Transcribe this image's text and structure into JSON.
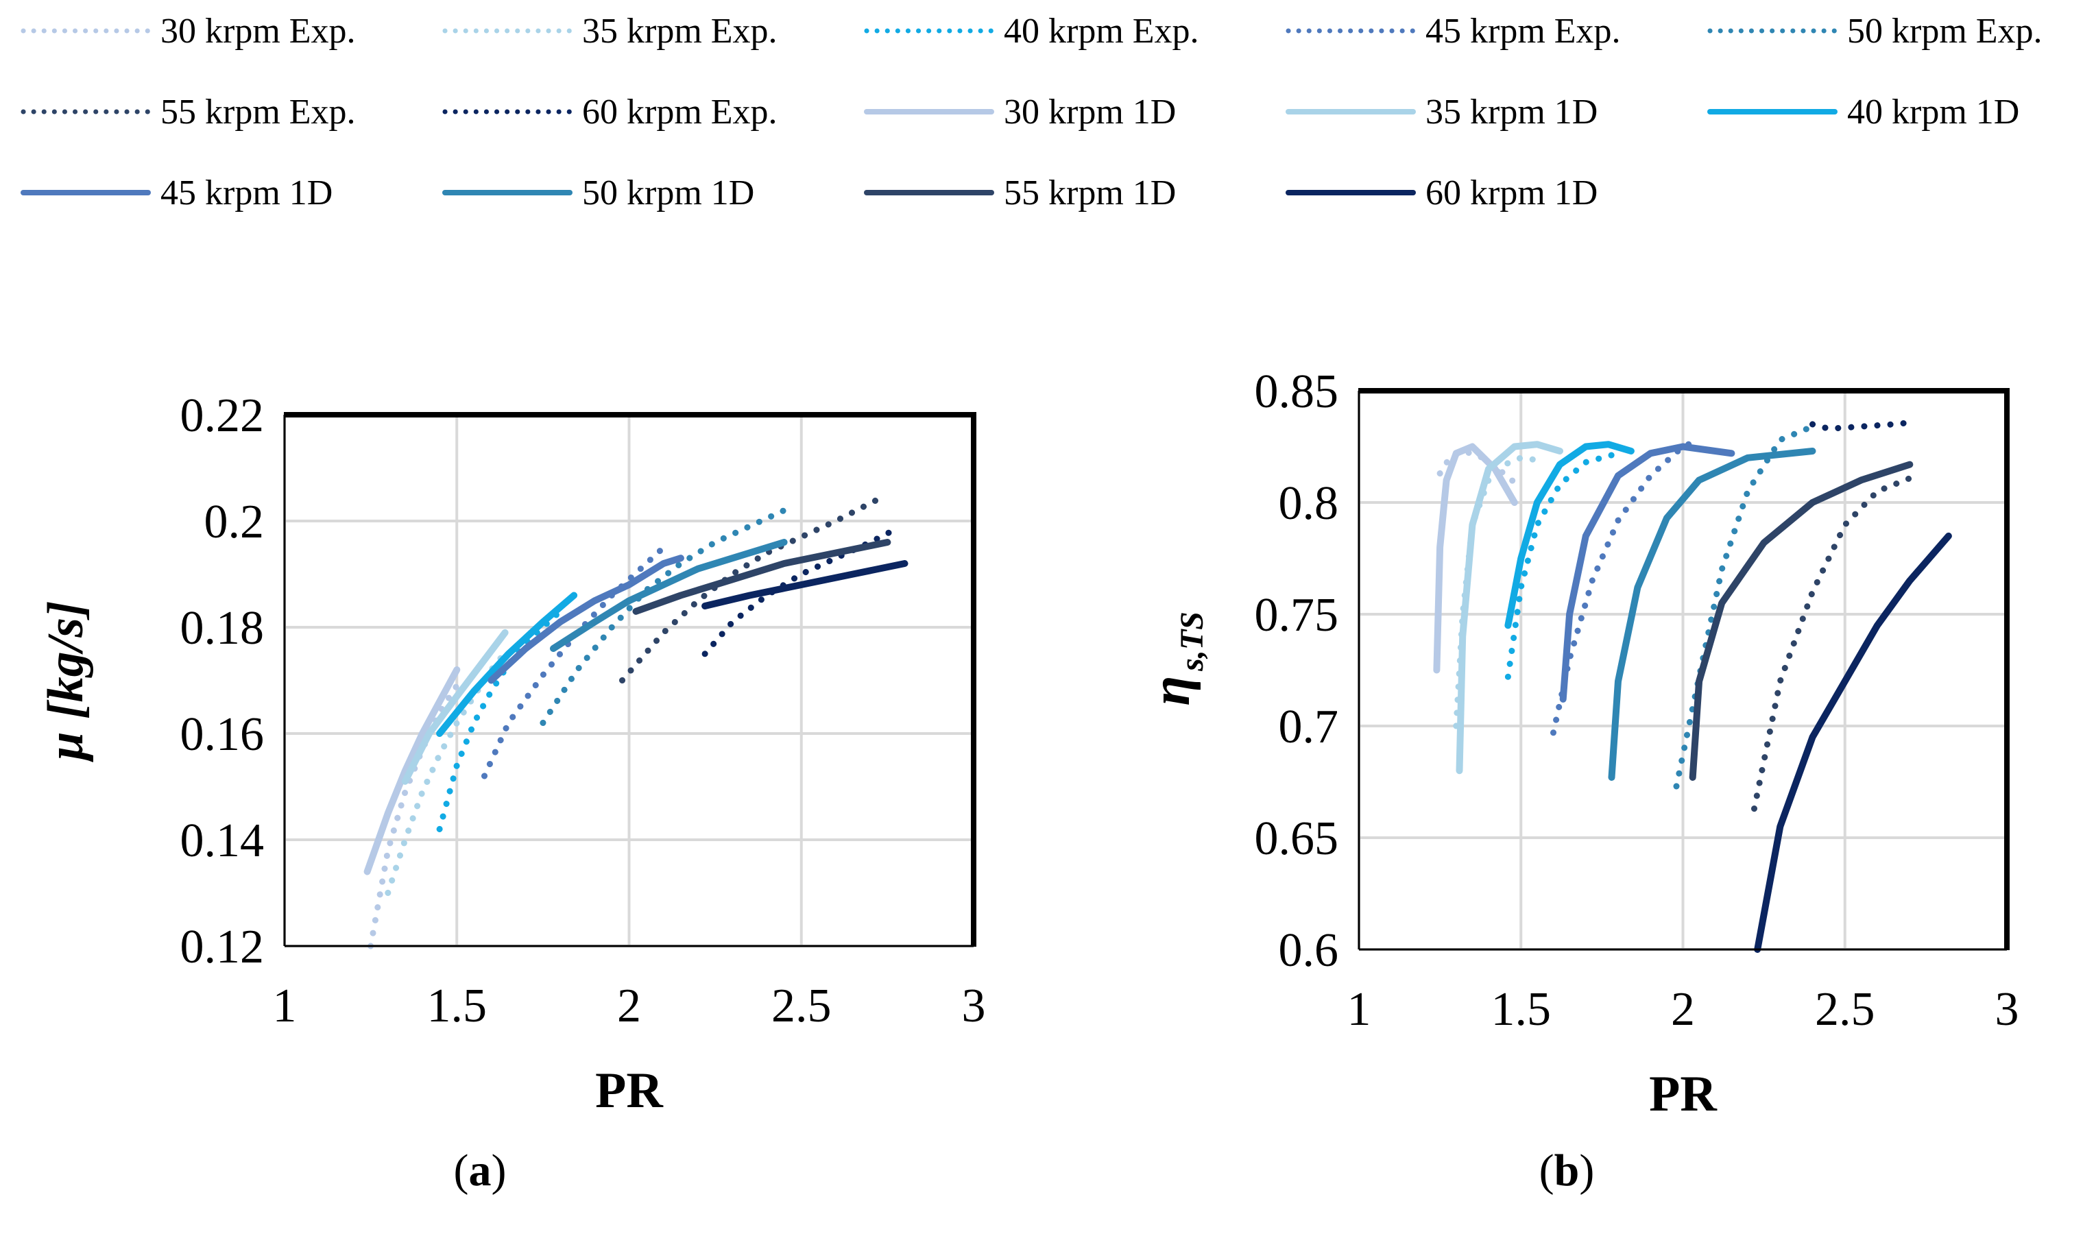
{
  "legend": {
    "items": [
      {
        "label": "30 krpm Exp.",
        "color": "#b6c9e6",
        "style": "dotted"
      },
      {
        "label": "35 krpm Exp.",
        "color": "#a9d3e8",
        "style": "dotted"
      },
      {
        "label": "40 krpm Exp.",
        "color": "#11aae4",
        "style": "dotted"
      },
      {
        "label": "45 krpm Exp.",
        "color": "#4f79bd",
        "style": "dotted"
      },
      {
        "label": "50 krpm Exp.",
        "color": "#2f86b3",
        "style": "dotted"
      },
      {
        "label": "55 krpm Exp.",
        "color": "#2e4467",
        "style": "dotted"
      },
      {
        "label": "60 krpm Exp.",
        "color": "#0b2560",
        "style": "dotted"
      },
      {
        "label": "30 krpm 1D",
        "color": "#b6c9e6",
        "style": "solid"
      },
      {
        "label": "35 krpm 1D",
        "color": "#a9d3e8",
        "style": "solid"
      },
      {
        "label": "40 krpm 1D",
        "color": "#11aae4",
        "style": "solid"
      },
      {
        "label": "45 krpm 1D",
        "color": "#4f79bd",
        "style": "solid"
      },
      {
        "label": "50 krpm 1D",
        "color": "#2f86b3",
        "style": "solid"
      },
      {
        "label": "55 krpm 1D",
        "color": "#2e4467",
        "style": "solid"
      },
      {
        "label": "60 krpm 1D",
        "color": "#0b2560",
        "style": "solid"
      }
    ]
  },
  "captions": {
    "a": {
      "open": "(",
      "letter": "a",
      "close": ")"
    },
    "b": {
      "open": "(",
      "letter": "b",
      "close": ")"
    }
  },
  "chart_data": [
    {
      "id": "a",
      "type": "line",
      "xlabel": "PR",
      "ylabel": "μ [kg/s]",
      "xlim": [
        1,
        3
      ],
      "ylim": [
        0.12,
        0.22
      ],
      "xticks": [
        "1",
        "1.5",
        "2",
        "2.5",
        "3"
      ],
      "yticks": [
        "0.12",
        "0.14",
        "0.16",
        "0.18",
        "0.2",
        "0.22"
      ],
      "grid": true,
      "series": [
        {
          "name": "30 krpm Exp.",
          "x": [
            1.25,
            1.3,
            1.35,
            1.4,
            1.45,
            1.5
          ],
          "y": [
            0.12,
            0.138,
            0.149,
            0.157,
            0.164,
            0.169
          ]
        },
        {
          "name": "35 krpm Exp.",
          "x": [
            1.3,
            1.35,
            1.4,
            1.45,
            1.5,
            1.55,
            1.6,
            1.65
          ],
          "y": [
            0.13,
            0.14,
            0.149,
            0.156,
            0.162,
            0.167,
            0.172,
            0.176
          ]
        },
        {
          "name": "40 krpm Exp.",
          "x": [
            1.45,
            1.5,
            1.55,
            1.6,
            1.65,
            1.7,
            1.75,
            1.8
          ],
          "y": [
            0.142,
            0.154,
            0.162,
            0.168,
            0.173,
            0.177,
            0.18,
            0.183
          ]
        },
        {
          "name": "45 krpm Exp.",
          "x": [
            1.58,
            1.65,
            1.75,
            1.85,
            1.95,
            2.05,
            2.1
          ],
          "y": [
            0.152,
            0.162,
            0.171,
            0.179,
            0.186,
            0.192,
            0.195
          ]
        },
        {
          "name": "50 krpm Exp.",
          "x": [
            1.75,
            1.85,
            1.95,
            2.05,
            2.15,
            2.25,
            2.35,
            2.45
          ],
          "y": [
            0.162,
            0.172,
            0.18,
            0.187,
            0.192,
            0.196,
            0.199,
            0.202
          ]
        },
        {
          "name": "55 krpm Exp.",
          "x": [
            1.98,
            2.1,
            2.2,
            2.3,
            2.4,
            2.5,
            2.6,
            2.72
          ],
          "y": [
            0.17,
            0.179,
            0.185,
            0.19,
            0.194,
            0.197,
            0.2,
            0.204
          ]
        },
        {
          "name": "60 krpm Exp.",
          "x": [
            2.22,
            2.3,
            2.4,
            2.5,
            2.6,
            2.7,
            2.76
          ],
          "y": [
            0.175,
            0.181,
            0.186,
            0.19,
            0.193,
            0.196,
            0.198
          ]
        },
        {
          "name": "30 krpm 1D",
          "x": [
            1.24,
            1.3,
            1.35,
            1.4,
            1.45,
            1.5
          ],
          "y": [
            0.134,
            0.145,
            0.153,
            0.16,
            0.166,
            0.172
          ]
        },
        {
          "name": "35 krpm 1D",
          "x": [
            1.35,
            1.42,
            1.5,
            1.57,
            1.64
          ],
          "y": [
            0.151,
            0.16,
            0.167,
            0.173,
            0.179
          ]
        },
        {
          "name": "40 krpm 1D",
          "x": [
            1.45,
            1.55,
            1.65,
            1.75,
            1.84
          ],
          "y": [
            0.16,
            0.168,
            0.175,
            0.181,
            0.186
          ]
        },
        {
          "name": "45 krpm 1D",
          "x": [
            1.6,
            1.7,
            1.8,
            1.9,
            2.0,
            2.1,
            2.15
          ],
          "y": [
            0.17,
            0.176,
            0.181,
            0.185,
            0.188,
            0.192,
            0.193
          ]
        },
        {
          "name": "50 krpm 1D",
          "x": [
            1.78,
            1.9,
            2.0,
            2.1,
            2.2,
            2.3,
            2.45
          ],
          "y": [
            0.176,
            0.181,
            0.185,
            0.188,
            0.191,
            0.193,
            0.196
          ]
        },
        {
          "name": "55 krpm 1D",
          "x": [
            2.02,
            2.15,
            2.3,
            2.45,
            2.6,
            2.75
          ],
          "y": [
            0.183,
            0.186,
            0.189,
            0.192,
            0.194,
            0.196
          ]
        },
        {
          "name": "60 krpm 1D",
          "x": [
            2.22,
            2.35,
            2.5,
            2.65,
            2.8
          ],
          "y": [
            0.184,
            0.186,
            0.188,
            0.19,
            0.192
          ]
        }
      ]
    },
    {
      "id": "b",
      "type": "line",
      "xlabel": "PR",
      "ylabel": "η",
      "ylabel_sub": "s,TS",
      "xlim": [
        1,
        3
      ],
      "ylim": [
        0.6,
        0.85
      ],
      "xticks": [
        "1",
        "1.5",
        "2",
        "2.5",
        "3"
      ],
      "yticks": [
        "0.6",
        "0.65",
        "0.7",
        "0.75",
        "0.8",
        "0.85"
      ],
      "grid": true,
      "series": [
        {
          "name": "30 krpm Exp.",
          "x": [
            1.25,
            1.28,
            1.32,
            1.37,
            1.43,
            1.48
          ],
          "y": [
            0.813,
            0.82,
            0.823,
            0.821,
            0.815,
            0.809
          ]
        },
        {
          "name": "35 krpm Exp.",
          "x": [
            1.3,
            1.32,
            1.35,
            1.4,
            1.45,
            1.5,
            1.55
          ],
          "y": [
            0.7,
            0.75,
            0.79,
            0.81,
            0.817,
            0.82,
            0.819
          ]
        },
        {
          "name": "40 krpm Exp.",
          "x": [
            1.46,
            1.5,
            1.55,
            1.62,
            1.7,
            1.8
          ],
          "y": [
            0.722,
            0.762,
            0.79,
            0.808,
            0.818,
            0.822
          ]
        },
        {
          "name": "45 krpm Exp.",
          "x": [
            1.6,
            1.65,
            1.72,
            1.8,
            1.9,
            2.0,
            2.05
          ],
          "y": [
            0.697,
            0.73,
            0.765,
            0.792,
            0.812,
            0.825,
            0.828
          ]
        },
        {
          "name": "50 krpm Exp.",
          "x": [
            1.98,
            2.05,
            2.12,
            2.2,
            2.3,
            2.4
          ],
          "y": [
            0.673,
            0.722,
            0.77,
            0.805,
            0.828,
            0.834
          ]
        },
        {
          "name": "55 krpm Exp.",
          "x": [
            2.22,
            2.3,
            2.4,
            2.5,
            2.6,
            2.72
          ],
          "y": [
            0.663,
            0.72,
            0.76,
            0.79,
            0.805,
            0.812
          ]
        },
        {
          "name": "60 krpm Exp.",
          "x": [
            2.4,
            2.45,
            2.55,
            2.65,
            2.72
          ],
          "y": [
            0.835,
            0.833,
            0.834,
            0.835,
            0.836
          ]
        },
        {
          "name": "30 krpm 1D",
          "x": [
            1.24,
            1.25,
            1.27,
            1.3,
            1.35,
            1.42,
            1.48
          ],
          "y": [
            0.725,
            0.78,
            0.81,
            0.822,
            0.825,
            0.815,
            0.8
          ]
        },
        {
          "name": "35 krpm 1D",
          "x": [
            1.31,
            1.32,
            1.35,
            1.4,
            1.48,
            1.55,
            1.62
          ],
          "y": [
            0.68,
            0.74,
            0.79,
            0.815,
            0.825,
            0.826,
            0.823
          ]
        },
        {
          "name": "40 krpm 1D",
          "x": [
            1.46,
            1.5,
            1.55,
            1.62,
            1.7,
            1.77,
            1.84
          ],
          "y": [
            0.745,
            0.775,
            0.8,
            0.817,
            0.825,
            0.826,
            0.823
          ]
        },
        {
          "name": "45 krpm 1D",
          "x": [
            1.63,
            1.65,
            1.7,
            1.8,
            1.9,
            2.0,
            2.15
          ],
          "y": [
            0.712,
            0.75,
            0.785,
            0.812,
            0.822,
            0.825,
            0.822
          ]
        },
        {
          "name": "50 krpm 1D",
          "x": [
            1.78,
            1.8,
            1.86,
            1.95,
            2.05,
            2.2,
            2.4
          ],
          "y": [
            0.677,
            0.72,
            0.762,
            0.793,
            0.81,
            0.82,
            0.823
          ]
        },
        {
          "name": "55 krpm 1D",
          "x": [
            2.03,
            2.05,
            2.12,
            2.25,
            2.4,
            2.55,
            2.7
          ],
          "y": [
            0.677,
            0.72,
            0.755,
            0.782,
            0.8,
            0.81,
            0.817
          ]
        },
        {
          "name": "60 krpm 1D",
          "x": [
            2.23,
            2.3,
            2.4,
            2.5,
            2.6,
            2.7,
            2.82
          ],
          "y": [
            0.6,
            0.655,
            0.695,
            0.72,
            0.745,
            0.765,
            0.785
          ]
        }
      ]
    }
  ]
}
